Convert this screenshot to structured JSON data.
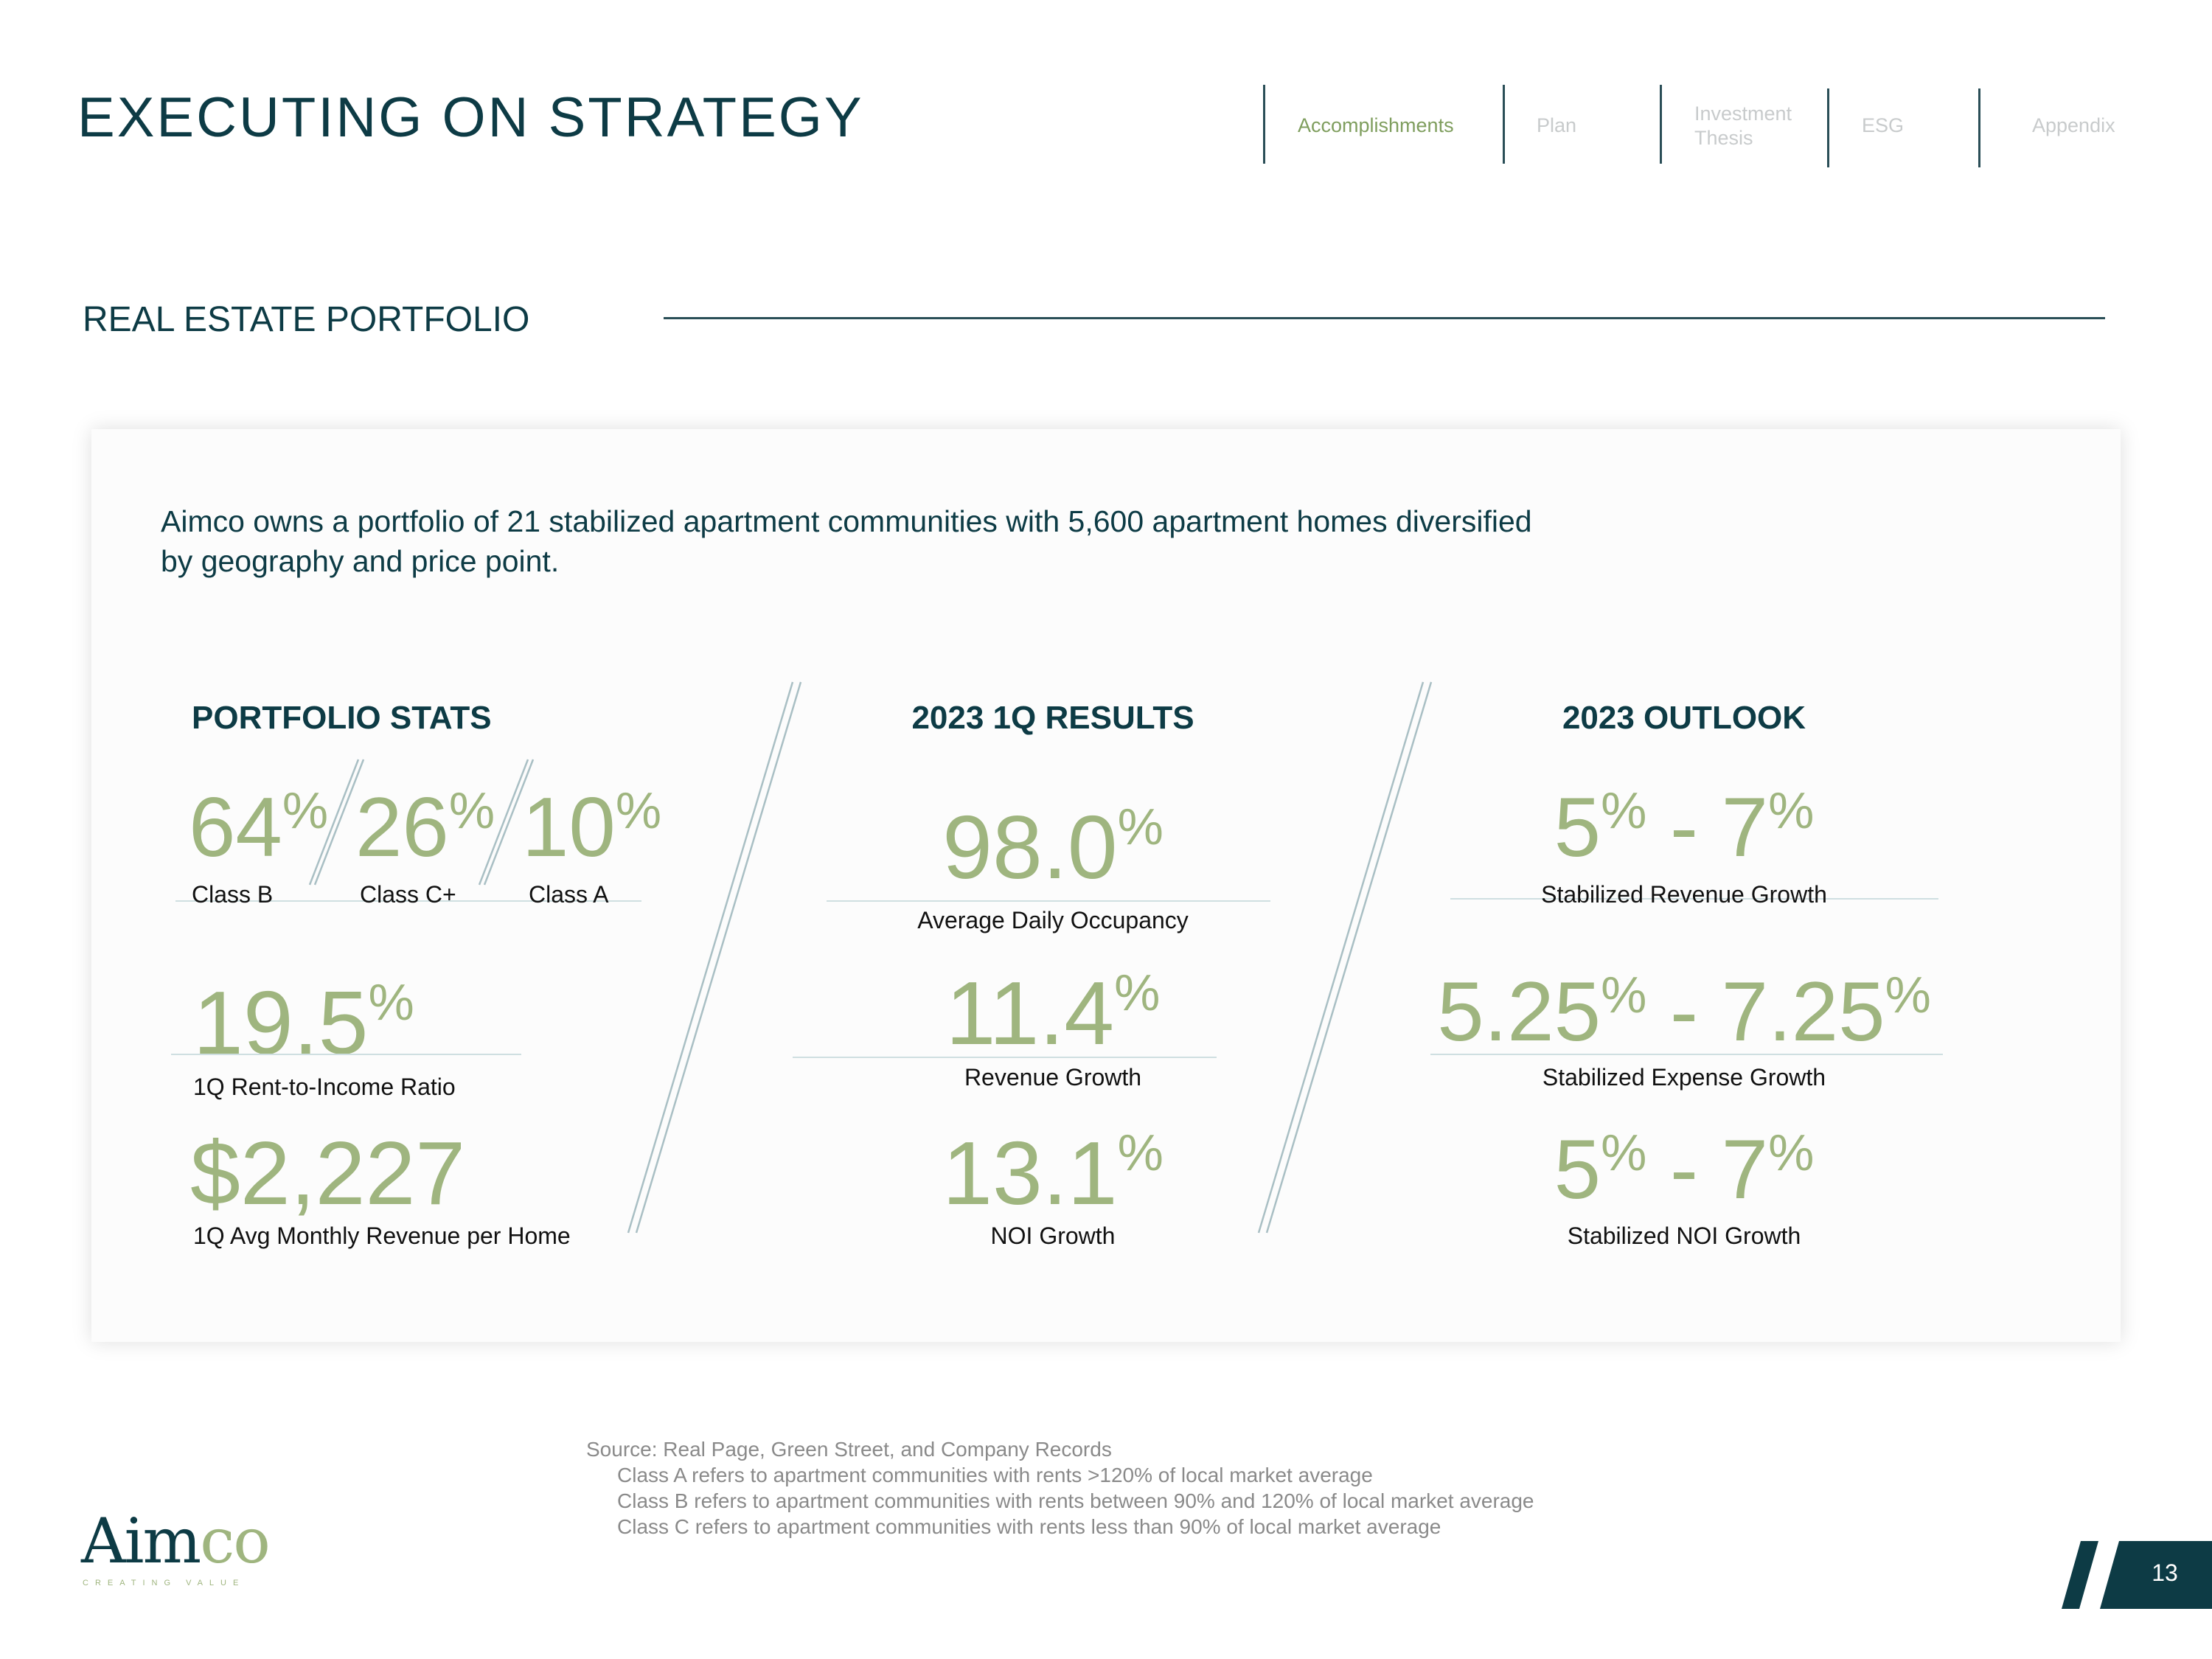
{
  "header": {
    "title": "EXECUTING ON STRATEGY",
    "nav": [
      {
        "label": "Accomplishments",
        "active": true
      },
      {
        "label": "Plan",
        "active": false
      },
      {
        "label": "Investment\nThesis",
        "active": false
      },
      {
        "label": "ESG",
        "active": false
      },
      {
        "label": "Appendix",
        "active": false
      }
    ]
  },
  "section": {
    "title": "REAL ESTATE PORTFOLIO"
  },
  "intro": "Aimco owns a portfolio of 21 stabilized apartment communities with 5,600 apartment homes diversified by geography and price point.",
  "portfolio_stats": {
    "heading": "PORTFOLIO STATS",
    "classes": [
      {
        "value": "64",
        "unit": "%",
        "label": "Class B"
      },
      {
        "value": "26",
        "unit": "%",
        "label": "Class C+"
      },
      {
        "value": "10",
        "unit": "%",
        "label": "Class A"
      }
    ],
    "rent_to_income": {
      "value": "19.5",
      "unit": "%",
      "label": "1Q Rent-to-Income Ratio"
    },
    "avg_revenue": {
      "value": "$2,227",
      "label": "1Q Avg Monthly Revenue per Home"
    }
  },
  "results": {
    "heading": "2023 1Q RESULTS",
    "items": [
      {
        "value": "98.0",
        "unit": "%",
        "label": "Average Daily Occupancy"
      },
      {
        "value": "11.4",
        "unit": "%",
        "label": "Revenue Growth"
      },
      {
        "value": "13.1",
        "unit": "%",
        "label": "NOI Growth"
      }
    ]
  },
  "outlook": {
    "heading": "2023 OUTLOOK",
    "items": [
      {
        "low": "5",
        "high": "7",
        "unit": "%",
        "separator": "-",
        "label": "Stabilized Revenue Growth"
      },
      {
        "low": "5.25",
        "high": "7.25",
        "unit": "%",
        "separator": "-",
        "label": "Stabilized Expense Growth"
      },
      {
        "low": "5",
        "high": "7",
        "unit": "%",
        "separator": "-",
        "label": "Stabilized NOI Growth"
      }
    ]
  },
  "source": {
    "line": "Source: Real Page, Green Street, and Company Records",
    "notes": [
      "Class A refers to apartment communities with rents >120% of local market average",
      "Class B refers to apartment communities with rents between 90% and 120% of local market average",
      "Class C refers to apartment communities with rents less than 90% of local market average"
    ]
  },
  "logo": {
    "name_a": "Aim",
    "name_b": "co",
    "tagline": "CREATING VALUE"
  },
  "page_number": "13",
  "colors": {
    "navy": "#0d3b45",
    "sage": "#9fb57f",
    "nav_active": "#7f9e5e",
    "nav_inactive": "#c8cbcc"
  }
}
